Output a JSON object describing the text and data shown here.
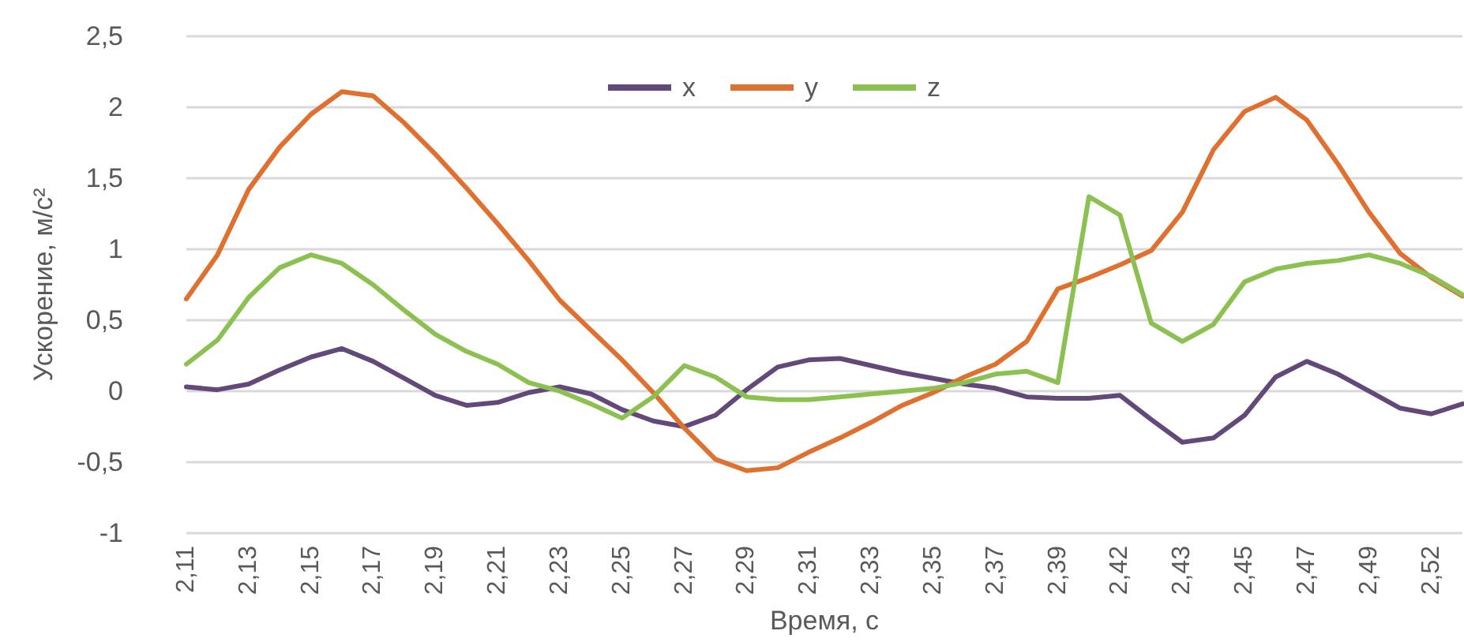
{
  "chart_data": {
    "type": "line",
    "xlabel": "Время, с",
    "ylabel": "Ускорение, м/с²",
    "categories": [
      "2,11",
      null,
      "2,13",
      null,
      "2,15",
      null,
      "2,17",
      null,
      "2,19",
      null,
      "2,21",
      null,
      "2,23",
      null,
      "2,25",
      null,
      "2,27",
      null,
      "2,29",
      null,
      "2,31",
      null,
      "2,33",
      null,
      "2,35",
      null,
      "2,37",
      null,
      "2,39",
      null,
      "2,42",
      null,
      "2,43",
      null,
      "2,45",
      null,
      "2,47",
      null,
      "2,49",
      null,
      "2,52",
      null
    ],
    "series": [
      {
        "name": "x",
        "color": "#63497a",
        "values": [
          0.03,
          0.01,
          0.05,
          0.15,
          0.24,
          0.3,
          0.21,
          0.09,
          -0.03,
          -0.1,
          -0.08,
          -0.01,
          0.03,
          -0.02,
          -0.13,
          -0.21,
          -0.25,
          -0.17,
          0.01,
          0.17,
          0.22,
          0.23,
          0.18,
          0.13,
          0.09,
          0.05,
          0.02,
          -0.04,
          -0.05,
          -0.05,
          -0.03,
          -0.2,
          -0.36,
          -0.33,
          -0.17,
          0.1,
          0.21,
          0.12,
          0,
          -0.12,
          -0.16,
          -0.09
        ]
      },
      {
        "name": "y",
        "color": "#e07030",
        "values": [
          0.65,
          0.96,
          1.42,
          1.72,
          1.95,
          2.11,
          2.08,
          1.89,
          1.67,
          1.43,
          1.18,
          0.92,
          0.64,
          0.43,
          0.22,
          -0.01,
          -0.26,
          -0.48,
          -0.56,
          -0.54,
          -0.43,
          -0.33,
          -0.22,
          -0.1,
          -0.01,
          0.1,
          0.19,
          0.35,
          0.72,
          0.8,
          0.89,
          0.99,
          1.26,
          1.7,
          1.97,
          2.07,
          1.91,
          1.6,
          1.26,
          0.97,
          0.8,
          0.67
        ]
      },
      {
        "name": "z",
        "color": "#8cc152",
        "values": [
          0.19,
          0.36,
          0.66,
          0.87,
          0.96,
          0.9,
          0.75,
          0.57,
          0.4,
          0.28,
          0.19,
          0.06,
          0,
          -0.09,
          -0.19,
          -0.04,
          0.18,
          0.1,
          -0.04,
          -0.06,
          -0.06,
          -0.04,
          -0.02,
          0,
          0.02,
          0.06,
          0.12,
          0.14,
          0.06,
          1.37,
          1.24,
          0.48,
          0.35,
          0.47,
          0.77,
          0.86,
          0.9,
          0.92,
          0.96,
          0.9,
          0.81,
          0.68
        ]
      }
    ],
    "ylim": [
      -1,
      2.5
    ],
    "yticks": [
      {
        "value": -1,
        "label": "-1"
      },
      {
        "value": -0.5,
        "label": "-0,5"
      },
      {
        "value": 0,
        "label": "0"
      },
      {
        "value": 0.5,
        "label": "0,5"
      },
      {
        "value": 1,
        "label": "1"
      },
      {
        "value": 1.5,
        "label": "1,5"
      },
      {
        "value": 2,
        "label": "2"
      },
      {
        "value": 2.5,
        "label": "2,5"
      }
    ],
    "grid": "y",
    "legend": "top",
    "marker": "none",
    "line_style": "solid"
  }
}
